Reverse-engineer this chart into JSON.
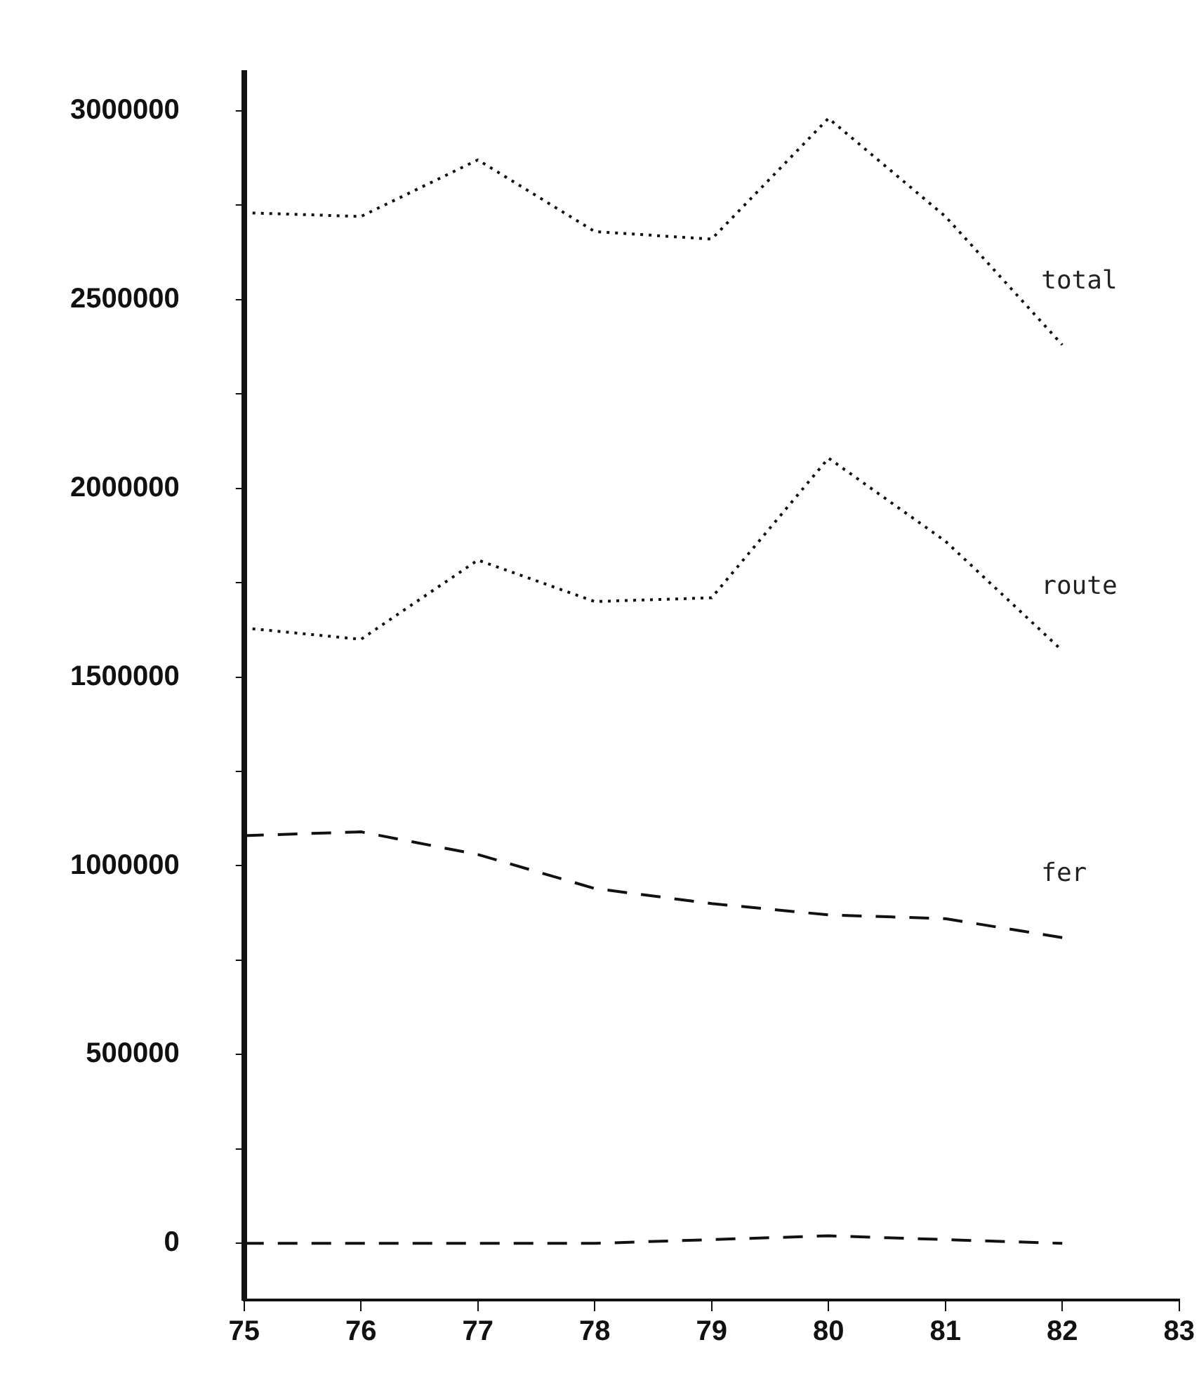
{
  "chart_data": {
    "type": "line",
    "x": [
      75,
      76,
      77,
      78,
      79,
      80,
      81,
      82
    ],
    "xlim": [
      75,
      83
    ],
    "xticks": [
      75,
      76,
      77,
      78,
      79,
      80,
      81,
      82,
      83
    ],
    "ylim": [
      -150000,
      3100000
    ],
    "yticks": [
      0,
      {
        "value": 250000,
        "label": null
      },
      500000,
      {
        "value": 750000,
        "label": null
      },
      1000000,
      {
        "value": 1250000,
        "label": null
      },
      1500000,
      {
        "value": 1750000,
        "label": null
      },
      2000000,
      {
        "value": 2250000,
        "label": null
      },
      2500000,
      {
        "value": 2750000,
        "label": null
      },
      3000000
    ],
    "grid": false,
    "legend": false,
    "marker": "none",
    "series": [
      {
        "name": "total",
        "color": "#111111",
        "line_style": "dotted",
        "values": [
          2730000,
          2720000,
          2870000,
          2680000,
          2660000,
          2980000,
          2720000,
          2380000
        ]
      },
      {
        "name": "route",
        "color": "#111111",
        "line_style": "dotted",
        "values": [
          1630000,
          1600000,
          1810000,
          1700000,
          1710000,
          2080000,
          1860000,
          1570000
        ]
      },
      {
        "name": "fer",
        "color": "#111111",
        "line_style": "dashed",
        "values": [
          1080000,
          1090000,
          1030000,
          940000,
          900000,
          870000,
          860000,
          810000
        ]
      },
      {
        "color": "#111111",
        "line_style": "dashed",
        "values": [
          0,
          0,
          0,
          0,
          10000,
          20000,
          10000,
          0
        ]
      }
    ]
  }
}
